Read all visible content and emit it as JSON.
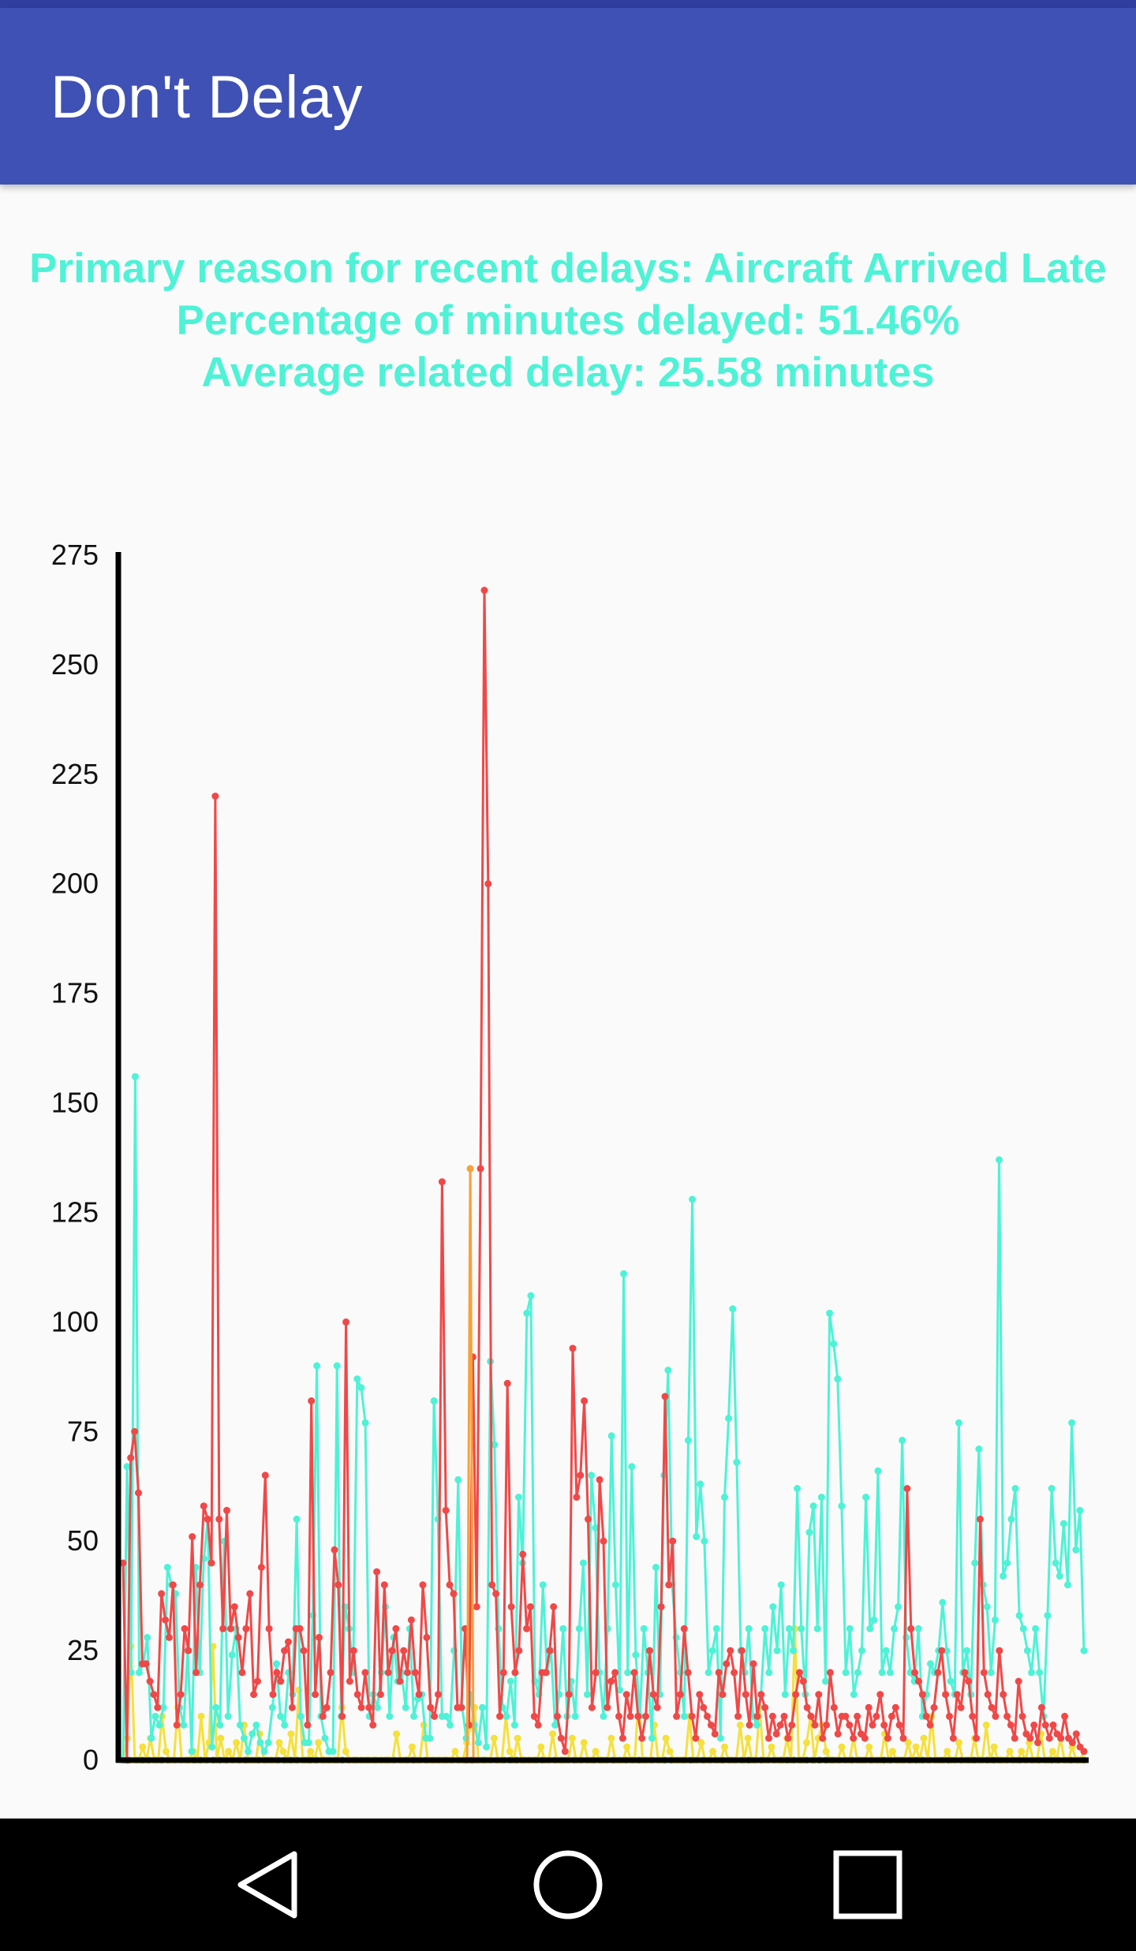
{
  "app": {
    "title": "Don't Delay"
  },
  "summary": {
    "line1": "Primary reason for recent delays: Aircraft Arrived Late",
    "line2": "Percentage of minutes delayed: 51.46%",
    "line3": "Average related delay: 25.58 minutes",
    "color": "#4ef2d6"
  },
  "navigation": {
    "back_icon": "triangle-back-icon",
    "home_icon": "circle-home-icon",
    "recents_icon": "square-recents-icon"
  },
  "colors": {
    "app_bar": "#3f51b5",
    "status_bar": "#303f9f",
    "nav_bar": "#000000"
  },
  "chart_data": {
    "type": "line",
    "title": "",
    "xlabel": "",
    "ylabel": "",
    "ylim": [
      0,
      275
    ],
    "yticks": [
      "0",
      "25",
      "50",
      "75",
      "100",
      "125",
      "150",
      "175",
      "200",
      "225",
      "250",
      "275"
    ],
    "grid": false,
    "series": [
      {
        "color": "#4ef2d6",
        "values": [
          0,
          67,
          20,
          156,
          20,
          22,
          28,
          5,
          10,
          8,
          12,
          44,
          40,
          38,
          12,
          8,
          25,
          2,
          44,
          20,
          46,
          55,
          3,
          12,
          8,
          50,
          10,
          24,
          30,
          8,
          5,
          2,
          6,
          8,
          4,
          2,
          4,
          12,
          22,
          10,
          8,
          20,
          15,
          55,
          10,
          4,
          4,
          33,
          90,
          10,
          5,
          2,
          2,
          90,
          10,
          35,
          30,
          20,
          87,
          85,
          77,
          10,
          15,
          12,
          20,
          35,
          10,
          28,
          18,
          20,
          12,
          30,
          10,
          14,
          15,
          5,
          5,
          82,
          55,
          10,
          10,
          8,
          25,
          64,
          12,
          5,
          15,
          8,
          4,
          12,
          3,
          91,
          72,
          30,
          12,
          10,
          18,
          8,
          60,
          45,
          102,
          106,
          18,
          15,
          40,
          20,
          25,
          8,
          15,
          30,
          10,
          18,
          10,
          30,
          45,
          15,
          65,
          53,
          20,
          10,
          30,
          74,
          40,
          16,
          111,
          20,
          67,
          24,
          10,
          30,
          20,
          5,
          44,
          15,
          65,
          89,
          40,
          28,
          20,
          10,
          73,
          128,
          51,
          63,
          50,
          20,
          25,
          30,
          5,
          60,
          78,
          103,
          68,
          25,
          20,
          30,
          10,
          8,
          15,
          30,
          20,
          35,
          25,
          40,
          15,
          30,
          25,
          62,
          30,
          15,
          52,
          58,
          30,
          60,
          18,
          102,
          95,
          87,
          58,
          20,
          30,
          15,
          20,
          25,
          60,
          30,
          32,
          66,
          20,
          25,
          20,
          30,
          35,
          73,
          28,
          20,
          18,
          30,
          10,
          15,
          22,
          20,
          25,
          36,
          25,
          18,
          15,
          77,
          20,
          25,
          15,
          45,
          71,
          40,
          35,
          20,
          32,
          137,
          42,
          45,
          55,
          62,
          33,
          30,
          25,
          20,
          30,
          20,
          10,
          33,
          62,
          45,
          42,
          54,
          40,
          77,
          48,
          57,
          25
        ]
      },
      {
        "color": "#f04848",
        "values": [
          45,
          0,
          69,
          75,
          61,
          22,
          22,
          18,
          15,
          12,
          38,
          32,
          28,
          40,
          8,
          15,
          30,
          25,
          51,
          20,
          40,
          58,
          55,
          45,
          220,
          55,
          30,
          57,
          30,
          35,
          28,
          20,
          30,
          38,
          15,
          18,
          44,
          65,
          30,
          15,
          20,
          18,
          25,
          27,
          12,
          30,
          30,
          25,
          8,
          82,
          15,
          28,
          10,
          12,
          20,
          48,
          40,
          10,
          100,
          18,
          25,
          15,
          12,
          20,
          12,
          8,
          43,
          15,
          40,
          20,
          25,
          30,
          18,
          25,
          20,
          32,
          20,
          15,
          40,
          28,
          12,
          10,
          15,
          132,
          57,
          40,
          38,
          12,
          12,
          30,
          8,
          92,
          35,
          135,
          267,
          200,
          40,
          38,
          10,
          20,
          86,
          35,
          20,
          25,
          47,
          30,
          35,
          10,
          8,
          20,
          20,
          25,
          35,
          10,
          5,
          2,
          15,
          94,
          60,
          65,
          82,
          55,
          12,
          20,
          64,
          50,
          12,
          18,
          20,
          10,
          5,
          15,
          10,
          20,
          10,
          5,
          10,
          25,
          15,
          12,
          35,
          83,
          40,
          50,
          10,
          15,
          30,
          20,
          10,
          5,
          15,
          12,
          10,
          8,
          6,
          20,
          15,
          22,
          25,
          20,
          10,
          25,
          15,
          8,
          22,
          10,
          15,
          12,
          5,
          10,
          6,
          8,
          10,
          5,
          8,
          15,
          20,
          18,
          12,
          10,
          8,
          15,
          5,
          8,
          20,
          12,
          6,
          10,
          10,
          8,
          5,
          10,
          6,
          5,
          12,
          8,
          10,
          15,
          8,
          5,
          10,
          12,
          8,
          5,
          62,
          30,
          20,
          18,
          15,
          10,
          8,
          12,
          20,
          25,
          15,
          10,
          5,
          15,
          12,
          20,
          18,
          10,
          5,
          55,
          20,
          15,
          12,
          10,
          25,
          15,
          10,
          8,
          5,
          18,
          10,
          6,
          5,
          8,
          4,
          12,
          8,
          5,
          8,
          6,
          5,
          10,
          5,
          4,
          6,
          3,
          2
        ]
      },
      {
        "color": "#f7a13a",
        "values": [
          135
        ]
      },
      {
        "color": "#f5e03c",
        "values": [
          0,
          5,
          26,
          0,
          0,
          3,
          0,
          5,
          0,
          0,
          10,
          2,
          0,
          0,
          12,
          0,
          0,
          0,
          2,
          0,
          10,
          0,
          4,
          26,
          0,
          5,
          0,
          2,
          0,
          4,
          0,
          8,
          0,
          0,
          0,
          6,
          0,
          0,
          0,
          0,
          4,
          2,
          0,
          6,
          0,
          16,
          0,
          0,
          2,
          0,
          4,
          0,
          0,
          0,
          0,
          0,
          12,
          2,
          0,
          0,
          0,
          0,
          0,
          0,
          0,
          0,
          0,
          0,
          0,
          0,
          6,
          0,
          0,
          0,
          3,
          0,
          0,
          8,
          0,
          0,
          0,
          0,
          0,
          0,
          0,
          2,
          0,
          0,
          4,
          8,
          12,
          0,
          0,
          0,
          0,
          5,
          0,
          0,
          10,
          2,
          0,
          5,
          0,
          0,
          0,
          0,
          0,
          3,
          0,
          0,
          6,
          0,
          0,
          0,
          0,
          5,
          0,
          0,
          4,
          0,
          0,
          2,
          0,
          0,
          0,
          5,
          0,
          0,
          0,
          3,
          0,
          0,
          15,
          0,
          0,
          0,
          8,
          0,
          0,
          5,
          2,
          0,
          0,
          0,
          0,
          10,
          0,
          0,
          4,
          0,
          0,
          2,
          0,
          0,
          3,
          0,
          0,
          0,
          8,
          0,
          5,
          0,
          0,
          12,
          0,
          0,
          3,
          0,
          0,
          0,
          5,
          0,
          30,
          0,
          0,
          4,
          10,
          0,
          5,
          8,
          2,
          0,
          0,
          0,
          3,
          0,
          0,
          5,
          0,
          0,
          0,
          3,
          0,
          0,
          0,
          6,
          0,
          2,
          0,
          0,
          0,
          4,
          0,
          3,
          0,
          5,
          0,
          10,
          0,
          0,
          0,
          2,
          0,
          0,
          4,
          0,
          0,
          0,
          5,
          0,
          0,
          8,
          0,
          3,
          0,
          0,
          0,
          2,
          0,
          0,
          2,
          0,
          4,
          0,
          0,
          6,
          0,
          0,
          2,
          0,
          5,
          0,
          0,
          3,
          0,
          0,
          2
        ]
      },
      {
        "color": "#9ccc3c",
        "values": [
          0,
          0,
          0,
          0,
          0,
          0,
          0,
          0,
          0,
          0,
          0,
          0,
          0,
          0,
          0,
          0,
          0,
          0,
          0,
          0,
          0,
          0,
          0,
          0,
          0,
          0,
          0,
          0,
          0,
          0,
          0,
          0,
          0,
          0,
          0,
          0,
          0,
          0,
          0,
          0,
          0,
          0,
          0,
          0,
          0,
          0,
          0,
          0,
          0,
          0,
          0,
          0,
          0,
          0,
          0,
          0,
          0,
          0,
          0,
          0,
          0,
          0,
          0,
          0,
          0,
          0,
          0,
          0,
          0,
          0,
          0,
          0,
          0,
          0,
          0,
          0,
          0,
          0,
          0,
          0,
          0,
          0,
          0,
          0,
          0,
          0,
          0,
          0,
          0,
          0,
          0,
          0,
          0,
          0,
          0,
          0,
          0,
          0,
          0,
          0,
          0,
          0,
          0,
          0,
          0,
          0,
          0,
          0,
          0,
          0,
          0,
          0,
          0,
          0,
          0,
          0,
          0,
          0,
          0,
          0,
          0,
          0,
          0,
          0,
          0,
          0,
          0,
          0,
          0,
          0,
          0,
          0,
          0,
          0,
          0,
          0,
          0,
          0,
          0,
          0,
          0,
          0,
          0,
          0,
          0,
          0,
          0,
          0,
          0,
          0
        ]
      }
    ]
  }
}
